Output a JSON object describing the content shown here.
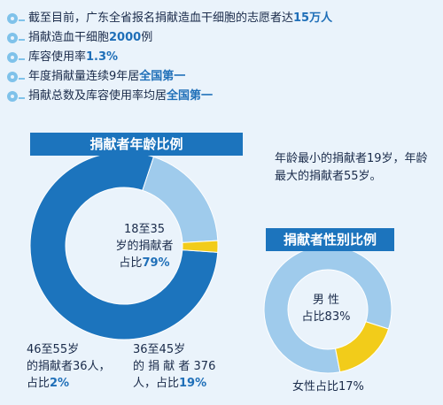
{
  "bullets": [
    {
      "text": "截至目前，广东全省报名捐献造血干细胞的志愿者达",
      "highlight": "15万人"
    },
    {
      "text": "捐献造血干细胞",
      "highlight": "2000",
      "suffix": "例"
    },
    {
      "text": "库容使用率",
      "highlight": "1.3%"
    },
    {
      "text": "年度捐献量连续9年居",
      "highlight": "全国第一"
    },
    {
      "text": "捐献总数及库容使用率均居",
      "highlight": "全国第一"
    }
  ],
  "note": "年龄最小的捐献者19岁，年龄最大的捐献者55岁。",
  "colors": {
    "dark": "#1c74bd",
    "light": "#9fcbec",
    "yellow": "#f2cc1a",
    "bg": "#eaf3fb"
  },
  "chart_data": [
    {
      "type": "pie",
      "title": "捐献者年龄比例",
      "slices": [
        {
          "label_lines": [
            "18至35",
            "岁的捐献者"
          ],
          "share_prefix": "占比",
          "share": "79%",
          "value": 79,
          "color": "#1c74bd"
        },
        {
          "label_lines": [
            "36至45岁",
            "的 捐 献 者 376"
          ],
          "share_prefix": "人，占比",
          "share": "19%",
          "value": 19,
          "color": "#9fcbec"
        },
        {
          "label_lines": [
            "46至55岁",
            "的捐献者36人，"
          ],
          "share_prefix": "占比",
          "share": "2%",
          "value": 2,
          "color": "#f2cc1a"
        }
      ]
    },
    {
      "type": "pie",
      "title": "捐献者性别比例",
      "slices": [
        {
          "label_lines": [
            "男 性"
          ],
          "share_prefix": "占比",
          "share": "83%",
          "value": 83,
          "color": "#9fcbec"
        },
        {
          "label_lines": [
            "女性占比17%"
          ],
          "share_prefix": "",
          "share": "",
          "value": 17,
          "color": "#f2cc1a"
        }
      ]
    }
  ]
}
